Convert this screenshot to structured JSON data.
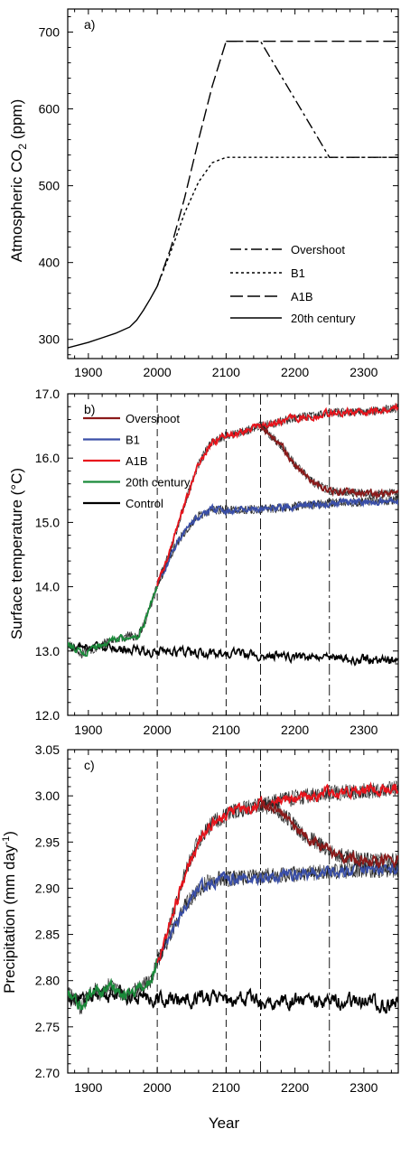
{
  "chart_data": [
    {
      "type": "line",
      "panel_label": "a)",
      "ylabel_pre": "Atmospheric CO",
      "ylabel_sub": "2",
      "ylabel_post": " (ppm)",
      "xlim": [
        1870,
        2350
      ],
      "ylim": [
        275,
        730
      ],
      "xticks": [
        1900,
        2000,
        2100,
        2200,
        2300
      ],
      "yticks": [
        300,
        400,
        500,
        600,
        700
      ],
      "legend_placement": "bottom-right",
      "series": [
        {
          "name": "Overshoot",
          "dash": "dashdot",
          "x": [
            2100,
            2150,
            2250,
            2350
          ],
          "y": [
            688,
            688,
            537,
            537
          ]
        },
        {
          "name": "B1",
          "dash": "dotted",
          "x": [
            2000,
            2020,
            2040,
            2060,
            2080,
            2100,
            2200,
            2350
          ],
          "y": [
            369,
            415,
            465,
            505,
            530,
            537,
            537,
            537
          ]
        },
        {
          "name": "A1B",
          "dash": "longdash",
          "x": [
            2000,
            2020,
            2040,
            2060,
            2080,
            2100,
            2200,
            2350
          ],
          "y": [
            369,
            420,
            485,
            560,
            630,
            688,
            688,
            688
          ]
        },
        {
          "name": "20th century",
          "dash": "solid",
          "x": [
            1870,
            1900,
            1920,
            1940,
            1960,
            1970,
            1980,
            1990,
            2000
          ],
          "y": [
            289,
            296,
            302,
            308,
            316,
            325,
            338,
            353,
            369
          ]
        }
      ]
    },
    {
      "type": "line",
      "panel_label": "b)",
      "ylabel": "Surface temperature (°C)",
      "xlim": [
        1870,
        2350
      ],
      "ylim": [
        12.0,
        17.0
      ],
      "xticks": [
        1900,
        2000,
        2100,
        2200,
        2300
      ],
      "yticks": [
        "12.0",
        "13.0",
        "14.0",
        "15.0",
        "16.0",
        "17.0"
      ],
      "vlines": [
        {
          "x": 2000,
          "style": "dash"
        },
        {
          "x": 2100,
          "style": "dash"
        },
        {
          "x": 2150,
          "style": "dashdot"
        },
        {
          "x": 2250,
          "style": "dashdot"
        }
      ],
      "legend_placement": "top-left",
      "series": [
        {
          "name": "Overshoot",
          "color": "#8b1a1a",
          "x": [
            2150,
            2160,
            2170,
            2180,
            2190,
            2200,
            2210,
            2220,
            2230,
            2240,
            2250,
            2270,
            2300,
            2350
          ],
          "y": [
            16.5,
            16.4,
            16.3,
            16.2,
            16.05,
            15.9,
            15.8,
            15.7,
            15.6,
            15.55,
            15.5,
            15.48,
            15.45,
            15.45
          ]
        },
        {
          "name": "B1",
          "color": "#3a4fa8",
          "x": [
            2000,
            2010,
            2020,
            2030,
            2040,
            2050,
            2060,
            2070,
            2080,
            2100,
            2150,
            2200,
            2250,
            2300,
            2350
          ],
          "y": [
            14.05,
            14.25,
            14.5,
            14.7,
            14.85,
            15.0,
            15.1,
            15.15,
            15.2,
            15.2,
            15.2,
            15.25,
            15.3,
            15.32,
            15.35
          ]
        },
        {
          "name": "A1B",
          "color": "#e8141c",
          "x": [
            2000,
            2010,
            2020,
            2030,
            2040,
            2050,
            2060,
            2070,
            2080,
            2090,
            2100,
            2120,
            2150,
            2200,
            2250,
            2300,
            2350
          ],
          "y": [
            14.05,
            14.3,
            14.6,
            14.95,
            15.3,
            15.6,
            15.9,
            16.1,
            16.25,
            16.3,
            16.35,
            16.4,
            16.5,
            16.62,
            16.7,
            16.72,
            16.78
          ]
        },
        {
          "name": "20th century",
          "color": "#1a8a3a",
          "x": [
            1870,
            1880,
            1890,
            1900,
            1910,
            1920,
            1930,
            1940,
            1950,
            1960,
            1970,
            1980,
            1990,
            2000
          ],
          "y": [
            13.1,
            13.05,
            12.95,
            13.0,
            13.05,
            13.1,
            13.15,
            13.2,
            13.2,
            13.25,
            13.2,
            13.4,
            13.7,
            14.0
          ]
        },
        {
          "name": "Control",
          "color": "#000000",
          "x": [
            1870,
            2350
          ],
          "y": [
            13.05,
            12.85
          ]
        }
      ]
    },
    {
      "type": "line",
      "panel_label": "c)",
      "ylabel_pre": "Precipitation (mm day",
      "ylabel_sup": "-1",
      "ylabel_post": ")",
      "xlabel": "Year",
      "xlim": [
        1870,
        2350
      ],
      "ylim": [
        2.7,
        3.05
      ],
      "xticks": [
        1900,
        2000,
        2100,
        2200,
        2300
      ],
      "yticks": [
        "2.70",
        "2.75",
        "2.80",
        "2.85",
        "2.90",
        "2.95",
        "3.00",
        "3.05"
      ],
      "vlines": [
        {
          "x": 2000,
          "style": "dash"
        },
        {
          "x": 2100,
          "style": "dash"
        },
        {
          "x": 2150,
          "style": "dashdot"
        },
        {
          "x": 2250,
          "style": "dashdot"
        }
      ],
      "series": [
        {
          "name": "Overshoot",
          "color": "#8b1a1a",
          "x": [
            2150,
            2170,
            2190,
            2210,
            2230,
            2250,
            2270,
            2300,
            2350
          ],
          "y": [
            2.99,
            2.985,
            2.975,
            2.96,
            2.95,
            2.94,
            2.935,
            2.93,
            2.93
          ]
        },
        {
          "name": "B1",
          "color": "#3a4fa8",
          "x": [
            2000,
            2010,
            2020,
            2030,
            2040,
            2050,
            2060,
            2070,
            2080,
            2090,
            2100,
            2150,
            2200,
            2250,
            2300,
            2350
          ],
          "y": [
            2.82,
            2.835,
            2.85,
            2.865,
            2.88,
            2.89,
            2.898,
            2.905,
            2.908,
            2.91,
            2.91,
            2.913,
            2.915,
            2.918,
            2.92,
            2.92
          ]
        },
        {
          "name": "A1B",
          "color": "#e8141c",
          "x": [
            2000,
            2010,
            2020,
            2030,
            2040,
            2050,
            2060,
            2070,
            2080,
            2090,
            2100,
            2120,
            2150,
            2200,
            2250,
            2300,
            2350
          ],
          "y": [
            2.82,
            2.84,
            2.865,
            2.89,
            2.915,
            2.935,
            2.95,
            2.962,
            2.97,
            2.975,
            2.98,
            2.985,
            2.99,
            2.998,
            3.003,
            3.005,
            3.008
          ]
        },
        {
          "name": "20th century",
          "color": "#1a8a3a",
          "x": [
            1870,
            1880,
            1890,
            1900,
            1910,
            1920,
            1930,
            1940,
            1950,
            1960,
            1970,
            1980,
            1990,
            2000
          ],
          "y": [
            2.785,
            2.78,
            2.77,
            2.785,
            2.79,
            2.785,
            2.795,
            2.79,
            2.785,
            2.785,
            2.79,
            2.795,
            2.8,
            2.82
          ]
        },
        {
          "name": "Control",
          "color": "#000000",
          "x": [
            1870,
            2350
          ],
          "y": [
            2.785,
            2.775
          ]
        }
      ]
    }
  ]
}
